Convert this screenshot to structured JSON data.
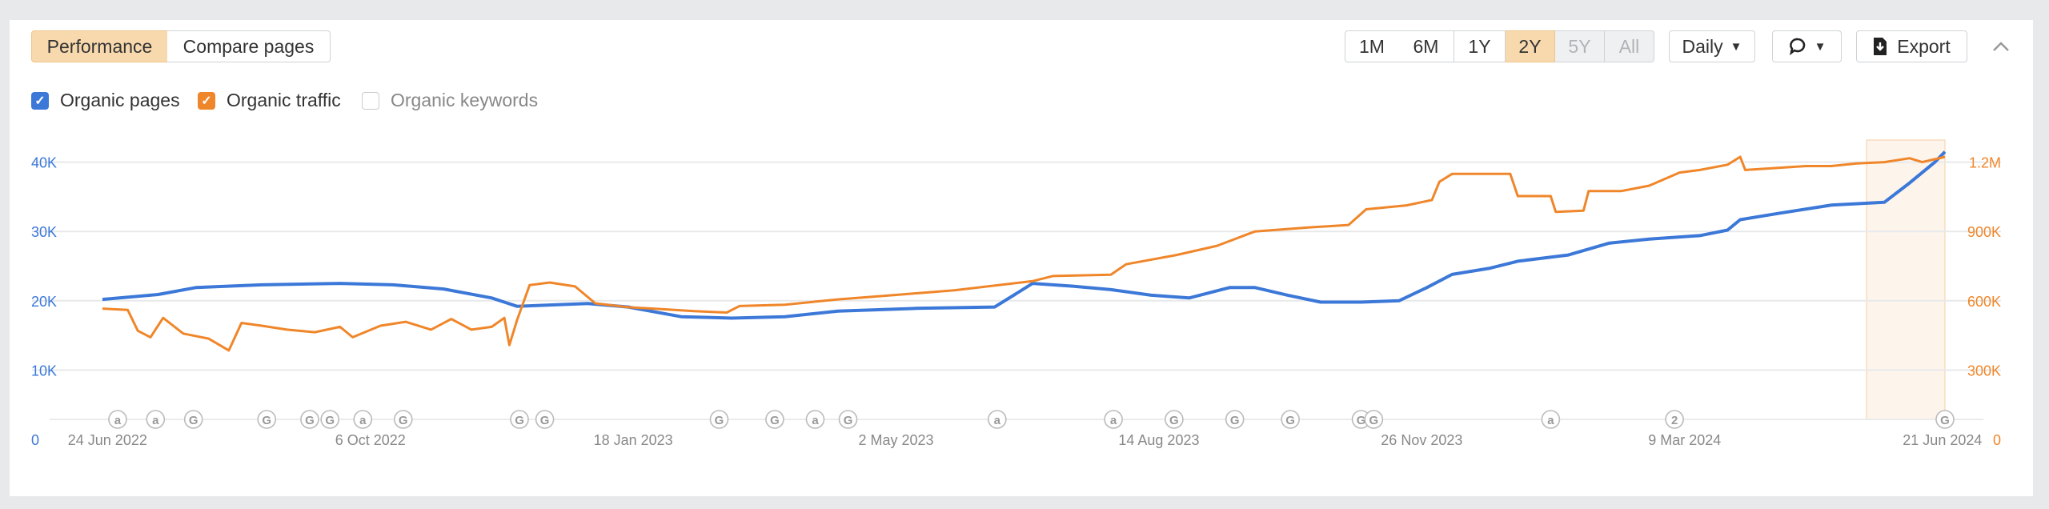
{
  "tabs": [
    {
      "label": "Performance",
      "active": true
    },
    {
      "label": "Compare pages",
      "active": false
    }
  ],
  "ranges": [
    {
      "label": "1M",
      "state": "normal"
    },
    {
      "label": "6M",
      "state": "normal"
    },
    {
      "label": "1Y",
      "state": "normal"
    },
    {
      "label": "2Y",
      "state": "active"
    },
    {
      "label": "5Y",
      "state": "disabled"
    },
    {
      "label": "All",
      "state": "disabled"
    }
  ],
  "interval": {
    "label": "Daily",
    "caret": "▼"
  },
  "annotations_button": {
    "icon": "comment-icon",
    "caret": "▼"
  },
  "export": {
    "label": "Export",
    "icon": "download-file-icon"
  },
  "collapse": {
    "icon": "chevron-up-icon",
    "glyph": "^"
  },
  "metrics": [
    {
      "label": "Organic pages",
      "checked": true,
      "color": "#3c78d8"
    },
    {
      "label": "Organic traffic",
      "checked": true,
      "color": "#f0862a"
    },
    {
      "label": "Organic keywords",
      "checked": false,
      "color": "#cccccc"
    }
  ],
  "chart_data": {
    "type": "line",
    "x_unit": "days since 24 Jun 2022",
    "xlim": [
      -2,
      727
    ],
    "x_ticks": [
      {
        "day": 0,
        "label": "24 Jun 2022"
      },
      {
        "day": 104,
        "label": "6 Oct 2022"
      },
      {
        "day": 208,
        "label": "18 Jan 2023"
      },
      {
        "day": 312,
        "label": "2 May 2023"
      },
      {
        "day": 416,
        "label": "14 Aug 2023"
      },
      {
        "day": 520,
        "label": "26 Nov 2023"
      },
      {
        "day": 624,
        "label": "9 Mar 2024"
      },
      {
        "day": 726,
        "label": "21 Jun 2024"
      }
    ],
    "y_left": {
      "ylim": [
        0,
        40000
      ],
      "ticks": [
        {
          "v": 0,
          "label": "0"
        },
        {
          "v": 10000,
          "label": "10K"
        },
        {
          "v": 20000,
          "label": "20K"
        },
        {
          "v": 30000,
          "label": "30K"
        },
        {
          "v": 40000,
          "label": "40K"
        }
      ],
      "color": "#3c78d8"
    },
    "y_right": {
      "ylim": [
        0,
        1200000
      ],
      "ticks": [
        {
          "v": 0,
          "label": "0"
        },
        {
          "v": 300000,
          "label": "300K"
        },
        {
          "v": 600000,
          "label": "600K"
        },
        {
          "v": 900000,
          "label": "900K"
        },
        {
          "v": 1200000,
          "label": "1.2M"
        }
      ],
      "color": "#f0862a"
    },
    "grid": true,
    "highlight_range": [
      696,
      727
    ],
    "series": [
      {
        "name": "Organic pages",
        "axis": "left",
        "color": "#3c78d8",
        "points": [
          [
            -2,
            20200
          ],
          [
            20,
            20900
          ],
          [
            35,
            21900
          ],
          [
            61,
            22300
          ],
          [
            92,
            22500
          ],
          [
            113,
            22300
          ],
          [
            133,
            21700
          ],
          [
            152,
            20400
          ],
          [
            162,
            19200
          ],
          [
            190,
            19600
          ],
          [
            206,
            19100
          ],
          [
            227,
            17700
          ],
          [
            247,
            17500
          ],
          [
            268,
            17700
          ],
          [
            289,
            18500
          ],
          [
            320,
            18900
          ],
          [
            351,
            19100
          ],
          [
            359,
            20900
          ],
          [
            366,
            22500
          ],
          [
            382,
            22100
          ],
          [
            397,
            21600
          ],
          [
            413,
            20800
          ],
          [
            428,
            20400
          ],
          [
            444,
            21900
          ],
          [
            454,
            21900
          ],
          [
            467,
            20800
          ],
          [
            480,
            19800
          ],
          [
            496,
            19800
          ],
          [
            511,
            20000
          ],
          [
            522,
            21900
          ],
          [
            532,
            23800
          ],
          [
            547,
            24700
          ],
          [
            558,
            25700
          ],
          [
            578,
            26600
          ],
          [
            594,
            28300
          ],
          [
            610,
            28900
          ],
          [
            630,
            29400
          ],
          [
            641,
            30200
          ],
          [
            646,
            31700
          ],
          [
            661,
            32600
          ],
          [
            682,
            33800
          ],
          [
            703,
            34200
          ],
          [
            713,
            37000
          ],
          [
            723,
            40000
          ],
          [
            727,
            41500
          ]
        ]
      },
      {
        "name": "Organic traffic",
        "axis": "right",
        "color": "#f0862a",
        "points": [
          [
            -2,
            566000
          ],
          [
            8,
            560000
          ],
          [
            12,
            470000
          ],
          [
            17,
            442000
          ],
          [
            22,
            526000
          ],
          [
            30,
            458000
          ],
          [
            40,
            436000
          ],
          [
            48,
            385000
          ],
          [
            53,
            504000
          ],
          [
            61,
            492000
          ],
          [
            71,
            475000
          ],
          [
            82,
            464000
          ],
          [
            92,
            487000
          ],
          [
            97,
            442000
          ],
          [
            108,
            492000
          ],
          [
            118,
            509000
          ],
          [
            128,
            475000
          ],
          [
            136,
            521000
          ],
          [
            144,
            475000
          ],
          [
            152,
            487000
          ],
          [
            157,
            526000
          ],
          [
            159,
            408000
          ],
          [
            162,
            515000
          ],
          [
            167,
            668000
          ],
          [
            175,
            679000
          ],
          [
            185,
            662000
          ],
          [
            193,
            589000
          ],
          [
            206,
            572000
          ],
          [
            216,
            566000
          ],
          [
            232,
            555000
          ],
          [
            245,
            549000
          ],
          [
            250,
            577000
          ],
          [
            268,
            583000
          ],
          [
            289,
            606000
          ],
          [
            315,
            628000
          ],
          [
            335,
            645000
          ],
          [
            366,
            685000
          ],
          [
            374,
            707000
          ],
          [
            397,
            713000
          ],
          [
            403,
            758000
          ],
          [
            423,
            798000
          ],
          [
            439,
            838000
          ],
          [
            454,
            900000
          ],
          [
            475,
            917000
          ],
          [
            491,
            928000
          ],
          [
            498,
            996000
          ],
          [
            514,
            1013000
          ],
          [
            524,
            1036000
          ],
          [
            527,
            1115000
          ],
          [
            532,
            1149000
          ],
          [
            555,
            1149000
          ],
          [
            558,
            1053000
          ],
          [
            571,
            1053000
          ],
          [
            573,
            985000
          ],
          [
            584,
            990000
          ],
          [
            586,
            1075000
          ],
          [
            599,
            1075000
          ],
          [
            610,
            1098000
          ],
          [
            622,
            1155000
          ],
          [
            630,
            1166000
          ],
          [
            641,
            1189000
          ],
          [
            646,
            1223000
          ],
          [
            648,
            1166000
          ],
          [
            672,
            1183000
          ],
          [
            682,
            1183000
          ],
          [
            692,
            1194000
          ],
          [
            703,
            1200000
          ],
          [
            713,
            1217000
          ],
          [
            718,
            1200000
          ],
          [
            727,
            1223000
          ]
        ]
      }
    ],
    "events": [
      {
        "day": 4,
        "label": "a"
      },
      {
        "day": 19,
        "label": "a"
      },
      {
        "day": 34,
        "label": "G"
      },
      {
        "day": 63,
        "label": "G"
      },
      {
        "day": 80,
        "label": "G"
      },
      {
        "day": 88,
        "label": "G"
      },
      {
        "day": 101,
        "label": "a"
      },
      {
        "day": 117,
        "label": "G"
      },
      {
        "day": 163,
        "label": "G"
      },
      {
        "day": 173,
        "label": "G"
      },
      {
        "day": 242,
        "label": "G"
      },
      {
        "day": 264,
        "label": "G"
      },
      {
        "day": 280,
        "label": "a"
      },
      {
        "day": 293,
        "label": "G"
      },
      {
        "day": 352,
        "label": "a"
      },
      {
        "day": 398,
        "label": "a"
      },
      {
        "day": 422,
        "label": "G"
      },
      {
        "day": 446,
        "label": "G"
      },
      {
        "day": 468,
        "label": "G"
      },
      {
        "day": 496,
        "label": "G"
      },
      {
        "day": 501,
        "label": "G"
      },
      {
        "day": 571,
        "label": "a"
      },
      {
        "day": 620,
        "label": "2"
      },
      {
        "day": 727,
        "label": "G"
      }
    ]
  }
}
